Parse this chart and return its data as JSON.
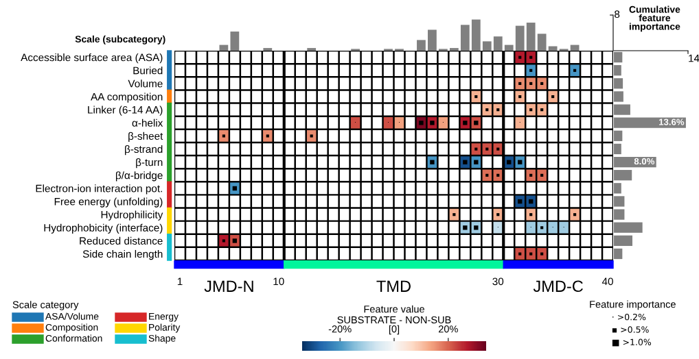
{
  "chart_data": [
    {
      "type": "heatmap",
      "ylabel": "Scale (subcategory)",
      "categories": [
        "1",
        null,
        null,
        null,
        null,
        null,
        null,
        null,
        null,
        "10",
        null,
        null,
        null,
        null,
        null,
        null,
        null,
        null,
        null,
        null,
        null,
        null,
        null,
        null,
        null,
        null,
        null,
        null,
        null,
        "30",
        null,
        null,
        null,
        null,
        null,
        null,
        null,
        null,
        null,
        "40"
      ],
      "y_categories": [
        "Accessible surface area (ASA)",
        "Buried",
        "Volume",
        "AA composition",
        "Linker (6-14 AA)",
        "α-helix",
        "β-sheet",
        "β-strand",
        "β-turn",
        "β/α-bridge",
        "Electron-ion interaction pot.",
        "Free energy (unfolding)",
        "Hydrophilicity",
        "Hydrophobicity (interface)",
        "Reduced distance",
        "Side chain length"
      ],
      "cells": [
        [
          null,
          null,
          null,
          null,
          null,
          null,
          null,
          null,
          null,
          null,
          null,
          null,
          null,
          null,
          null,
          null,
          null,
          null,
          null,
          null,
          null,
          null,
          null,
          null,
          null,
          null,
          null,
          null,
          null,
          null,
          null,
          27,
          27,
          null,
          null,
          null,
          null,
          null,
          null,
          null
        ],
        [
          null,
          null,
          null,
          null,
          null,
          null,
          null,
          null,
          null,
          null,
          null,
          null,
          null,
          null,
          null,
          null,
          null,
          null,
          null,
          null,
          null,
          null,
          null,
          null,
          null,
          null,
          null,
          null,
          null,
          null,
          null,
          null,
          -20,
          null,
          null,
          null,
          -20,
          null,
          null,
          null
        ],
        [
          null,
          null,
          null,
          null,
          null,
          null,
          null,
          null,
          null,
          null,
          null,
          null,
          null,
          null,
          null,
          null,
          null,
          null,
          null,
          null,
          null,
          null,
          null,
          null,
          null,
          null,
          null,
          null,
          null,
          null,
          null,
          16,
          16,
          16,
          null,
          null,
          null,
          null,
          null,
          null
        ],
        [
          null,
          null,
          null,
          null,
          null,
          null,
          null,
          null,
          null,
          null,
          null,
          null,
          null,
          null,
          null,
          null,
          null,
          null,
          null,
          null,
          null,
          null,
          null,
          null,
          null,
          null,
          null,
          12,
          null,
          null,
          null,
          12,
          null,
          null,
          12,
          null,
          null,
          null,
          null,
          null
        ],
        [
          null,
          null,
          null,
          null,
          null,
          null,
          null,
          null,
          null,
          null,
          null,
          null,
          null,
          null,
          null,
          null,
          null,
          null,
          null,
          null,
          null,
          null,
          null,
          null,
          null,
          null,
          null,
          null,
          12,
          12,
          null,
          null,
          12,
          12,
          null,
          null,
          null,
          null,
          null,
          null
        ],
        [
          null,
          null,
          null,
          null,
          null,
          null,
          null,
          null,
          null,
          null,
          null,
          null,
          null,
          null,
          null,
          null,
          22,
          null,
          null,
          22,
          14,
          null,
          32,
          27,
          14,
          null,
          27,
          22,
          null,
          null,
          null,
          12,
          null,
          null,
          null,
          null,
          null,
          null,
          null,
          null
        ],
        [
          null,
          null,
          null,
          null,
          16,
          null,
          null,
          null,
          16,
          null,
          null,
          null,
          16,
          null,
          null,
          null,
          null,
          null,
          null,
          null,
          null,
          null,
          null,
          null,
          null,
          null,
          null,
          null,
          null,
          null,
          null,
          null,
          null,
          null,
          null,
          null,
          null,
          null,
          null,
          null
        ],
        [
          null,
          null,
          null,
          null,
          null,
          null,
          null,
          null,
          null,
          null,
          null,
          null,
          null,
          null,
          null,
          null,
          null,
          null,
          null,
          null,
          null,
          null,
          null,
          null,
          null,
          null,
          null,
          22,
          22,
          22,
          null,
          null,
          null,
          null,
          null,
          null,
          null,
          null,
          null,
          null
        ],
        [
          null,
          null,
          null,
          null,
          null,
          null,
          null,
          null,
          null,
          null,
          null,
          null,
          null,
          null,
          null,
          null,
          null,
          null,
          null,
          null,
          null,
          null,
          null,
          -20,
          null,
          null,
          -30,
          -20,
          null,
          null,
          -30,
          -20,
          null,
          null,
          null,
          null,
          null,
          null,
          null,
          null
        ],
        [
          null,
          null,
          null,
          null,
          null,
          null,
          null,
          null,
          null,
          null,
          null,
          null,
          null,
          null,
          null,
          null,
          null,
          null,
          null,
          null,
          null,
          null,
          null,
          null,
          null,
          null,
          null,
          null,
          19,
          19,
          null,
          null,
          19,
          19,
          null,
          null,
          null,
          null,
          null,
          null
        ],
        [
          null,
          null,
          null,
          null,
          null,
          -20,
          null,
          null,
          null,
          null,
          null,
          null,
          null,
          null,
          null,
          null,
          null,
          null,
          null,
          null,
          null,
          null,
          null,
          null,
          null,
          null,
          null,
          null,
          null,
          null,
          null,
          null,
          null,
          null,
          null,
          null,
          null,
          null,
          null,
          null
        ],
        [
          null,
          null,
          null,
          null,
          null,
          null,
          null,
          null,
          null,
          null,
          null,
          null,
          null,
          null,
          null,
          null,
          null,
          null,
          null,
          null,
          null,
          null,
          null,
          null,
          null,
          null,
          null,
          null,
          null,
          null,
          null,
          -30,
          -30,
          null,
          null,
          null,
          null,
          null,
          null,
          null
        ],
        [
          null,
          null,
          null,
          null,
          null,
          null,
          null,
          null,
          null,
          null,
          null,
          null,
          null,
          null,
          null,
          null,
          null,
          null,
          null,
          null,
          null,
          null,
          null,
          null,
          null,
          12,
          null,
          null,
          null,
          12,
          null,
          null,
          12,
          null,
          null,
          null,
          12,
          null,
          null,
          null
        ],
        [
          null,
          null,
          null,
          null,
          null,
          null,
          null,
          null,
          null,
          null,
          null,
          null,
          null,
          null,
          null,
          null,
          null,
          null,
          null,
          null,
          null,
          null,
          null,
          null,
          null,
          null,
          -12,
          -12,
          null,
          -8,
          null,
          null,
          -12,
          -12,
          -12,
          -12,
          null,
          null,
          null,
          null
        ],
        [
          null,
          null,
          null,
          null,
          27,
          22,
          null,
          null,
          null,
          null,
          null,
          null,
          null,
          null,
          null,
          null,
          null,
          null,
          null,
          null,
          null,
          null,
          null,
          null,
          null,
          null,
          null,
          null,
          null,
          null,
          null,
          null,
          null,
          null,
          null,
          null,
          null,
          null,
          null,
          null
        ],
        [
          null,
          null,
          null,
          null,
          null,
          null,
          null,
          null,
          null,
          null,
          null,
          null,
          null,
          null,
          null,
          null,
          null,
          null,
          null,
          null,
          null,
          null,
          null,
          null,
          null,
          null,
          null,
          null,
          null,
          null,
          null,
          22,
          22,
          22,
          null,
          null,
          null,
          null,
          null,
          null
        ]
      ],
      "cell_labels": [
        [
          null,
          null,
          null,
          null,
          null,
          null,
          null,
          null,
          null,
          null,
          null,
          null,
          null,
          null,
          null,
          null,
          null,
          null,
          null,
          null,
          null,
          null,
          null,
          null,
          null,
          null,
          null,
          null,
          null,
          null,
          null,
          "▪",
          "▪",
          null,
          null,
          null,
          null,
          null,
          null,
          null
        ],
        [
          null,
          null,
          null,
          null,
          null,
          null,
          null,
          null,
          null,
          null,
          null,
          null,
          null,
          null,
          null,
          null,
          null,
          null,
          null,
          null,
          null,
          null,
          null,
          null,
          null,
          null,
          null,
          null,
          null,
          null,
          null,
          null,
          "▪",
          null,
          null,
          null,
          "▪",
          null,
          null,
          null
        ],
        [
          null,
          null,
          null,
          null,
          null,
          null,
          null,
          null,
          null,
          null,
          null,
          null,
          null,
          null,
          null,
          null,
          null,
          null,
          null,
          null,
          null,
          null,
          null,
          null,
          null,
          null,
          null,
          null,
          null,
          null,
          null,
          "▪",
          "▪",
          "▪",
          null,
          null,
          null,
          null,
          null,
          null
        ],
        [
          null,
          null,
          null,
          null,
          null,
          null,
          null,
          null,
          null,
          null,
          null,
          null,
          null,
          null,
          null,
          null,
          null,
          null,
          null,
          null,
          null,
          null,
          null,
          null,
          null,
          null,
          null,
          "▪",
          null,
          null,
          null,
          "▪",
          null,
          null,
          "▪",
          null,
          null,
          null,
          null,
          null
        ],
        [
          null,
          null,
          null,
          null,
          null,
          null,
          null,
          null,
          null,
          null,
          null,
          null,
          null,
          null,
          null,
          null,
          null,
          null,
          null,
          null,
          null,
          null,
          null,
          null,
          null,
          null,
          null,
          null,
          "▪",
          "▪",
          null,
          null,
          "▪",
          "▪",
          null,
          null,
          null,
          null,
          null,
          null
        ],
        [
          null,
          null,
          null,
          null,
          null,
          null,
          null,
          null,
          null,
          null,
          null,
          null,
          null,
          null,
          null,
          null,
          "·",
          null,
          null,
          "·",
          "·",
          null,
          "■",
          "■",
          "·",
          null,
          "■",
          "■",
          null,
          null,
          null,
          "·",
          null,
          null,
          null,
          null,
          null,
          null,
          null,
          null
        ],
        [
          null,
          null,
          null,
          null,
          "▪",
          null,
          null,
          null,
          "▪",
          null,
          null,
          null,
          "▪",
          null,
          null,
          null,
          null,
          null,
          null,
          null,
          null,
          null,
          null,
          null,
          null,
          null,
          null,
          null,
          null,
          null,
          null,
          null,
          null,
          null,
          null,
          null,
          null,
          null,
          null,
          null
        ],
        [
          null,
          null,
          null,
          null,
          null,
          null,
          null,
          null,
          null,
          null,
          null,
          null,
          null,
          null,
          null,
          null,
          null,
          null,
          null,
          null,
          null,
          null,
          null,
          null,
          null,
          null,
          null,
          "▪",
          "▪",
          "▪",
          null,
          null,
          null,
          null,
          null,
          null,
          null,
          null,
          null,
          null
        ],
        [
          null,
          null,
          null,
          null,
          null,
          null,
          null,
          null,
          null,
          null,
          null,
          null,
          null,
          null,
          null,
          null,
          null,
          null,
          null,
          null,
          null,
          null,
          null,
          "■",
          null,
          null,
          "■",
          "■",
          null,
          null,
          "■",
          "■",
          null,
          null,
          null,
          null,
          null,
          null,
          null,
          null
        ],
        [
          null,
          null,
          null,
          null,
          null,
          null,
          null,
          null,
          null,
          null,
          null,
          null,
          null,
          null,
          null,
          null,
          null,
          null,
          null,
          null,
          null,
          null,
          null,
          null,
          null,
          null,
          null,
          null,
          "▪",
          "▪",
          null,
          null,
          "▪",
          "▪",
          null,
          null,
          null,
          null,
          null,
          null
        ],
        [
          null,
          null,
          null,
          null,
          null,
          "■",
          null,
          null,
          null,
          null,
          null,
          null,
          null,
          null,
          null,
          null,
          null,
          null,
          null,
          null,
          null,
          null,
          null,
          null,
          null,
          null,
          null,
          null,
          null,
          null,
          null,
          null,
          null,
          null,
          null,
          null,
          null,
          null,
          null,
          null
        ],
        [
          null,
          null,
          null,
          null,
          null,
          null,
          null,
          null,
          null,
          null,
          null,
          null,
          null,
          null,
          null,
          null,
          null,
          null,
          null,
          null,
          null,
          null,
          null,
          null,
          null,
          null,
          null,
          null,
          null,
          null,
          null,
          "■",
          "■",
          null,
          null,
          null,
          null,
          null,
          null,
          null
        ],
        [
          null,
          null,
          null,
          null,
          null,
          null,
          null,
          null,
          null,
          null,
          null,
          null,
          null,
          null,
          null,
          null,
          null,
          null,
          null,
          null,
          null,
          null,
          null,
          null,
          null,
          "▪",
          null,
          null,
          null,
          "▪",
          null,
          null,
          "▪",
          null,
          null,
          null,
          "▪",
          null,
          null,
          null
        ],
        [
          null,
          null,
          null,
          null,
          null,
          null,
          null,
          null,
          null,
          null,
          null,
          null,
          null,
          null,
          null,
          null,
          null,
          null,
          null,
          null,
          null,
          null,
          null,
          null,
          null,
          null,
          "■",
          "■",
          null,
          "·",
          null,
          null,
          "·",
          "▪",
          "·",
          "·",
          null,
          null,
          null,
          null
        ],
        [
          null,
          null,
          null,
          null,
          "▪",
          "■",
          null,
          null,
          null,
          null,
          null,
          null,
          null,
          null,
          null,
          null,
          null,
          null,
          null,
          null,
          null,
          null,
          null,
          null,
          null,
          null,
          null,
          null,
          null,
          null,
          null,
          null,
          null,
          null,
          null,
          null,
          null,
          null,
          null,
          null
        ],
        [
          null,
          null,
          null,
          null,
          null,
          null,
          null,
          null,
          null,
          null,
          null,
          null,
          null,
          null,
          null,
          null,
          null,
          null,
          null,
          null,
          null,
          null,
          null,
          null,
          null,
          null,
          null,
          null,
          null,
          null,
          null,
          "▪",
          "▪",
          "▪",
          null,
          null,
          null,
          null,
          null,
          null
        ]
      ],
      "clim": [
        -34,
        34
      ],
      "cticks": [
        {
          "value": -20,
          "label": "-20%"
        },
        {
          "value": 0,
          "label": "[0]"
        },
        {
          "value": 20,
          "label": "20%"
        }
      ],
      "clabel": "Feature value\nSUBSTRATE - NON-SUB",
      "grid": true,
      "annotations": [
        "JMD-N",
        "TMD",
        "JMD-C",
        "Scale category",
        "ASA/Volume",
        "Composition",
        "Conformation",
        "Energy",
        "Polarity",
        "Shape",
        "Feature importance",
        "· >0.2%",
        "▪ >0.5%",
        "■ >1.0%"
      ]
    },
    {
      "type": "bar",
      "color": "#808080",
      "categories": [
        null,
        null,
        null,
        null,
        null,
        null,
        null,
        null,
        null,
        null,
        null,
        null,
        null,
        null,
        null,
        null,
        null,
        null,
        null,
        null,
        null,
        null,
        null,
        null,
        null,
        null,
        null,
        null,
        null,
        null,
        null,
        null,
        null,
        null,
        null,
        null,
        null,
        null,
        null,
        null
      ],
      "values": [
        null,
        null,
        null,
        null,
        1.3,
        4.3,
        null,
        null,
        0.6,
        null,
        null,
        null,
        0.6,
        null,
        null,
        null,
        0.4,
        null,
        null,
        0.4,
        0.4,
        null,
        2.4,
        4.7,
        0.4,
        0.6,
        5.8,
        7.0,
        2.1,
        3.2,
        1.3,
        5.6,
        6.3,
        3.8,
        1.0,
        0.4,
        1.3,
        null,
        null,
        null
      ],
      "ylim": [
        0,
        8
      ],
      "yticks": [
        8
      ],
      "tick_labels": "y"
    },
    {
      "type": "bar",
      "orientation": "horizontal",
      "color": "#808080",
      "title": "Cumulative feature importance",
      "categories": [
        null,
        null,
        null,
        null,
        null,
        null,
        null,
        null,
        null,
        null,
        null,
        null,
        null,
        null,
        null,
        null
      ],
      "values": [
        1.6,
        1.4,
        1.7,
        1.8,
        3.1,
        13.6,
        1.6,
        1.4,
        8.0,
        3.4,
        1.4,
        2.0,
        2.0,
        5.4,
        3.5,
        1.6
      ],
      "value_labels": [
        null,
        null,
        null,
        null,
        null,
        "13.6%",
        null,
        null,
        "8.0%",
        null,
        null,
        null,
        null,
        null,
        null,
        null
      ],
      "xlim": [
        0,
        14
      ],
      "xticks": [
        14
      ],
      "tick_labels": "x"
    }
  ]
}
